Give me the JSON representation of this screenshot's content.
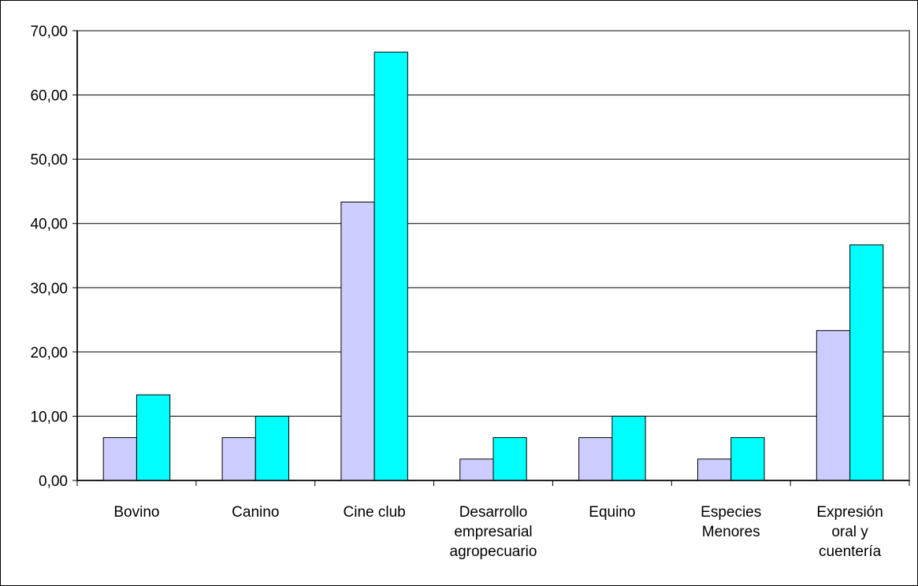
{
  "chart_data": {
    "type": "bar",
    "title": "",
    "xlabel": "",
    "ylabel": "",
    "ylim": [
      0,
      70
    ],
    "yticks": [
      "0,00",
      "10,00",
      "20,00",
      "30,00",
      "40,00",
      "50,00",
      "60,00",
      "70,00"
    ],
    "grid": true,
    "legend": "none",
    "categories": [
      [
        "Bovino"
      ],
      [
        "Canino"
      ],
      [
        "Cine club"
      ],
      [
        "Desarrollo",
        "empresarial",
        "agropecuario"
      ],
      [
        "Equino"
      ],
      [
        "Especies",
        "Menores"
      ],
      [
        "Expresión",
        "oral y",
        "cuentería"
      ]
    ],
    "series": [
      {
        "color": "#ccccff",
        "values": [
          6.67,
          6.67,
          43.33,
          3.33,
          6.67,
          3.33,
          23.33
        ]
      },
      {
        "color": "#00ffff",
        "values": [
          13.33,
          10.0,
          66.67,
          6.67,
          10.0,
          6.67,
          36.67
        ]
      }
    ],
    "plot_background": "#ffffff",
    "gridline_color": "#000000",
    "plot_border_color": "#808080"
  }
}
